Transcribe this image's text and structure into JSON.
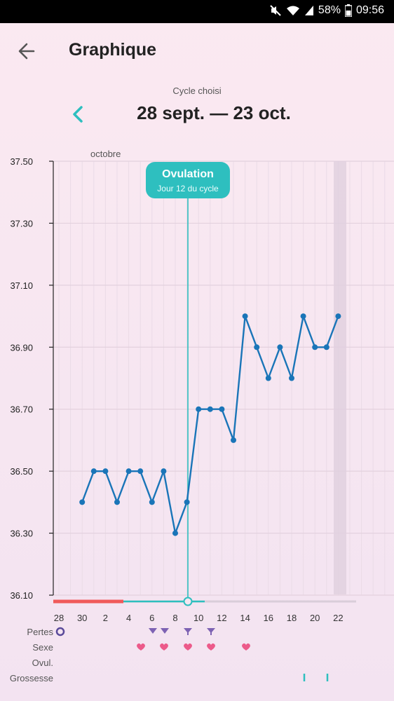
{
  "status": {
    "battery": "58%",
    "time": "09:56"
  },
  "header": {
    "title": "Graphique"
  },
  "cycle": {
    "label": "Cycle choisi",
    "range": "28 sept. — 23 oct."
  },
  "month_label": "octobre",
  "ovulation": {
    "title": "Ovulation",
    "subtitle": "Jour 12 du cycle"
  },
  "colors": {
    "accent": "#2ebfbf",
    "line": "#1a75b8",
    "period": "#f05a5a",
    "heart": "#ec5a8a",
    "mark": "#8a6fb8"
  },
  "rows": {
    "pertes": "Pertes",
    "sexe": "Sexe",
    "ovul": "Ovul.",
    "grossesse": "Grossesse"
  },
  "chart_data": {
    "type": "line",
    "x_labels": [
      "28",
      "30",
      "2",
      "4",
      "6",
      "8",
      "10",
      "12",
      "14",
      "16",
      "18",
      "20",
      "22"
    ],
    "ylim": [
      36.1,
      37.5
    ],
    "y_ticks": [
      "36.10",
      "36.30",
      "36.50",
      "36.70",
      "36.90",
      "37.10",
      "37.30",
      "37.50"
    ],
    "series": [
      {
        "values": [
          {
            "x": "30 sept.",
            "y": 36.4
          },
          {
            "x": "1 oct.",
            "y": 36.5
          },
          {
            "x": "2 oct.",
            "y": 36.5
          },
          {
            "x": "3 oct.",
            "y": 36.4
          },
          {
            "x": "4 oct.",
            "y": 36.5
          },
          {
            "x": "5 oct.",
            "y": 36.5
          },
          {
            "x": "6 oct.",
            "y": 36.4
          },
          {
            "x": "7 oct.",
            "y": 36.5
          },
          {
            "x": "8 oct.",
            "y": 36.3
          },
          {
            "x": "9 oct.",
            "y": 36.4
          },
          {
            "x": "10 oct.",
            "y": 36.7
          },
          {
            "x": "11 oct.",
            "y": 36.7
          },
          {
            "x": "12 oct.",
            "y": 36.7
          },
          {
            "x": "13 oct.",
            "y": 36.6
          },
          {
            "x": "14 oct.",
            "y": 37.0
          },
          {
            "x": "15 oct.",
            "y": 36.9
          },
          {
            "x": "16 oct.",
            "y": 36.8
          },
          {
            "x": "17 oct.",
            "y": 36.9
          },
          {
            "x": "18 oct.",
            "y": 36.8
          },
          {
            "x": "19 oct.",
            "y": 37.0
          },
          {
            "x": "20 oct.",
            "y": 36.9
          },
          {
            "x": "21 oct.",
            "y": 36.9
          },
          {
            "x": "22 oct.",
            "y": 37.0
          }
        ]
      }
    ],
    "grid": true
  }
}
